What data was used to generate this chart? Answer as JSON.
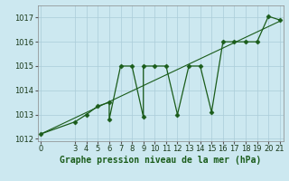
{
  "xlabel": "Graphe pression niveau de la mer (hPa)",
  "bg_color": "#cce8f0",
  "line_color": "#1a5c1a",
  "trend_color": "#1a5c1a",
  "grid_color": "#aaccd8",
  "data_x": [
    0,
    3,
    4,
    5,
    6,
    6,
    7,
    8,
    9,
    9,
    10,
    11,
    12,
    13,
    14,
    15,
    16,
    17,
    18,
    19,
    20,
    21
  ],
  "data_y": [
    1012.2,
    1012.7,
    1013.0,
    1013.35,
    1013.5,
    1012.8,
    1015.0,
    1015.0,
    1012.9,
    1015.0,
    1015.0,
    1015.0,
    1013.0,
    1015.0,
    1015.0,
    1013.1,
    1016.0,
    1016.0,
    1016.0,
    1016.0,
    1017.05,
    1016.9
  ],
  "trend_x": [
    0,
    21
  ],
  "trend_y": [
    1012.2,
    1016.85
  ],
  "ylim_min": 1011.9,
  "ylim_max": 1017.5,
  "xlim_min": -0.3,
  "xlim_max": 21.3,
  "yticks": [
    1012,
    1013,
    1014,
    1015,
    1016,
    1017
  ],
  "xticks": [
    0,
    3,
    4,
    5,
    6,
    7,
    8,
    9,
    10,
    11,
    12,
    13,
    14,
    15,
    16,
    17,
    18,
    19,
    20,
    21
  ],
  "marker_size": 4,
  "linewidth": 1.0,
  "xlabel_fontsize": 7,
  "tick_fontsize": 6
}
